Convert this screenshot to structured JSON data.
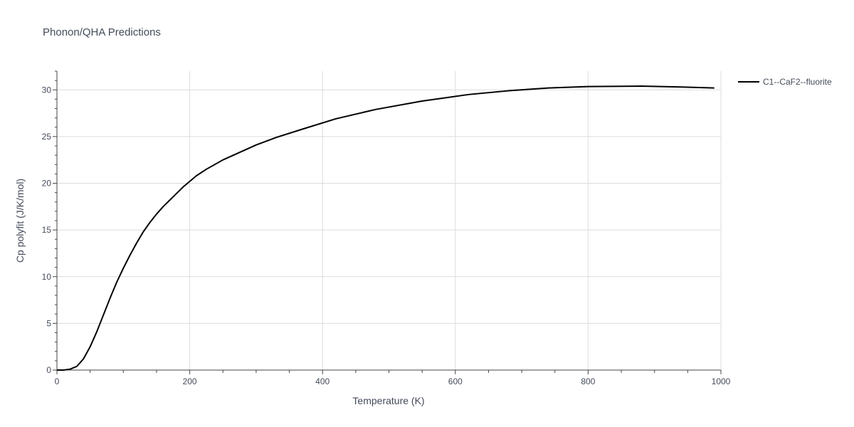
{
  "chart_data": {
    "type": "line",
    "title": "Phonon/QHA Predictions",
    "xlabel": "Temperature (K)",
    "ylabel": "Cp polyfit (J/K/mol)",
    "xlim": [
      0,
      1000
    ],
    "ylim": [
      0,
      32
    ],
    "xticks": [
      0,
      200,
      400,
      600,
      800,
      1000
    ],
    "yticks": [
      0,
      5,
      10,
      15,
      20,
      25,
      30
    ],
    "grid": true,
    "legend": "top-right",
    "series": [
      {
        "name": "C1--CaF2--fluorite",
        "color": "#000000",
        "x": [
          0,
          10,
          20,
          30,
          40,
          50,
          60,
          70,
          80,
          90,
          100,
          110,
          120,
          130,
          140,
          150,
          160,
          170,
          180,
          190,
          200,
          210,
          225,
          250,
          275,
          300,
          330,
          370,
          420,
          480,
          550,
          620,
          680,
          740,
          800,
          880,
          940,
          990
        ],
        "y": [
          0,
          0,
          0.1,
          0.4,
          1.2,
          2.5,
          4.1,
          5.9,
          7.7,
          9.4,
          10.9,
          12.3,
          13.6,
          14.8,
          15.8,
          16.7,
          17.5,
          18.2,
          18.9,
          19.6,
          20.2,
          20.8,
          21.5,
          22.5,
          23.3,
          24.1,
          24.9,
          25.8,
          26.9,
          27.9,
          28.8,
          29.5,
          29.9,
          30.2,
          30.35,
          30.4,
          30.3,
          30.2
        ]
      }
    ]
  }
}
